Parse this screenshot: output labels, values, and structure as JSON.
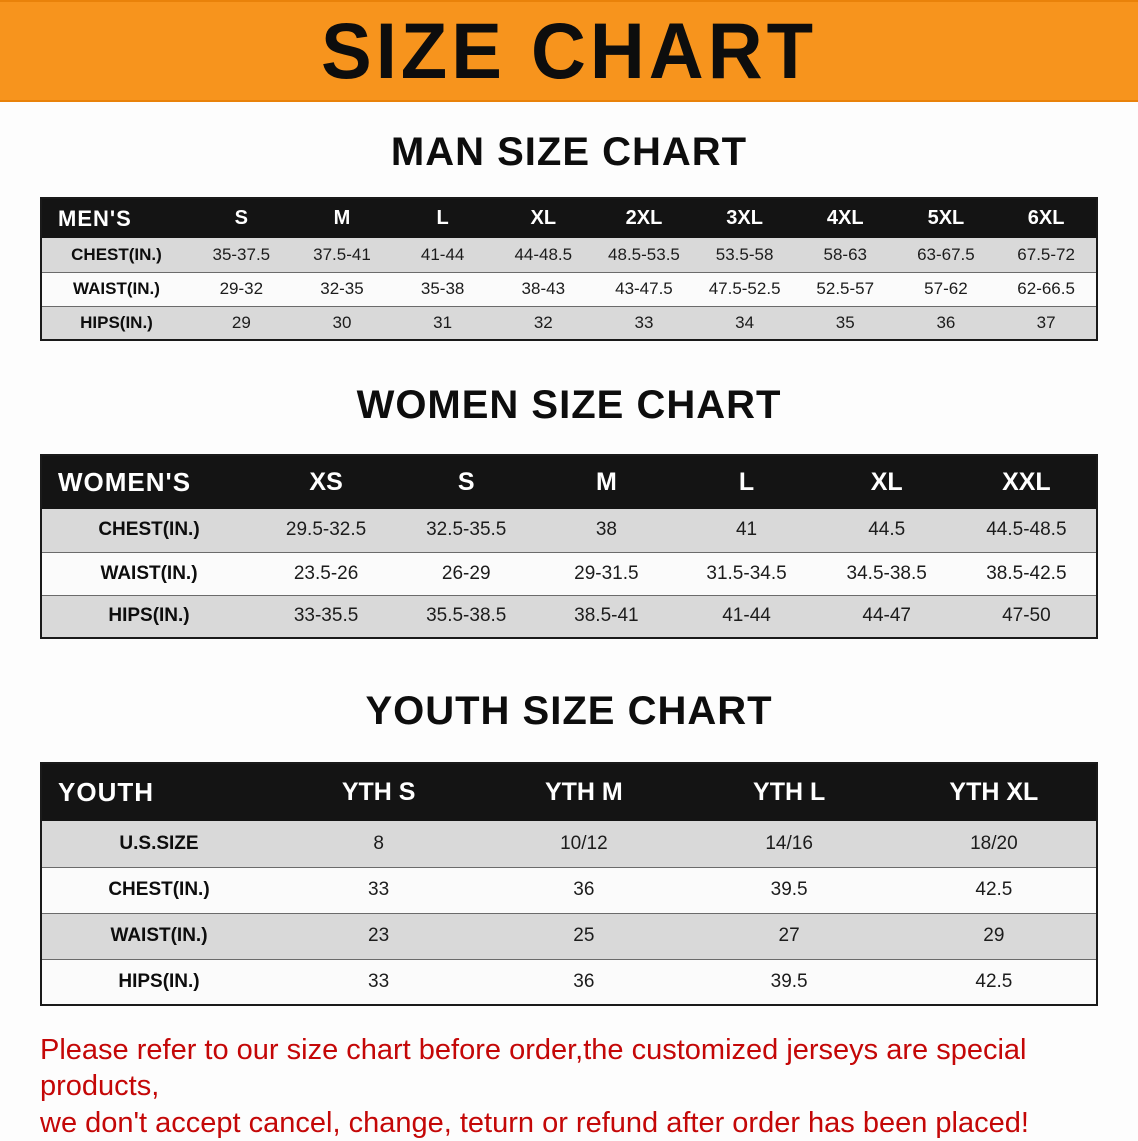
{
  "banner": {
    "title": "SIZE CHART",
    "background_color": "#f7941d"
  },
  "sections": {
    "men": {
      "heading": "MAN SIZE CHART",
      "table": {
        "header": [
          "MEN'S",
          "S",
          "M",
          "L",
          "XL",
          "2XL",
          "3XL",
          "4XL",
          "5XL",
          "6XL"
        ],
        "rows": [
          [
            "CHEST(IN.)",
            "35-37.5",
            "37.5-41",
            "41-44",
            "44-48.5",
            "48.5-53.5",
            "53.5-58",
            "58-63",
            "63-67.5",
            "67.5-72"
          ],
          [
            "WAIST(IN.)",
            "29-32",
            "32-35",
            "35-38",
            "38-43",
            "43-47.5",
            "47.5-52.5",
            "52.5-57",
            "57-62",
            "62-66.5"
          ],
          [
            "HIPS(IN.)",
            "29",
            "30",
            "31",
            "32",
            "33",
            "34",
            "35",
            "36",
            "37"
          ]
        ]
      }
    },
    "women": {
      "heading": "WOMEN SIZE CHART",
      "table": {
        "header": [
          "WOMEN'S",
          "XS",
          "S",
          "M",
          "L",
          "XL",
          "XXL"
        ],
        "rows": [
          [
            "CHEST(IN.)",
            "29.5-32.5",
            "32.5-35.5",
            "38",
            "41",
            "44.5",
            "44.5-48.5"
          ],
          [
            "WAIST(IN.)",
            "23.5-26",
            "26-29",
            "29-31.5",
            "31.5-34.5",
            "34.5-38.5",
            "38.5-42.5"
          ],
          [
            "HIPS(IN.)",
            "33-35.5",
            "35.5-38.5",
            "38.5-41",
            "41-44",
            "44-47",
            "47-50"
          ]
        ]
      }
    },
    "youth": {
      "heading": "YOUTH SIZE CHART",
      "table": {
        "header": [
          "YOUTH",
          "YTH S",
          "YTH M",
          "YTH L",
          "YTH XL"
        ],
        "rows": [
          [
            "U.S.SIZE",
            "8",
            "10/12",
            "14/16",
            "18/20"
          ],
          [
            "CHEST(IN.)",
            "33",
            "36",
            "39.5",
            "42.5"
          ],
          [
            "WAIST(IN.)",
            "23",
            "25",
            "27",
            "29"
          ],
          [
            "HIPS(IN.)",
            "33",
            "36",
            "39.5",
            "42.5"
          ]
        ]
      }
    }
  },
  "disclaimer": {
    "line1": "Please refer to our size chart before order,the customized jerseys are special products,",
    "line2": "we don't accept cancel, change, teturn or refund after order has been placed!"
  }
}
